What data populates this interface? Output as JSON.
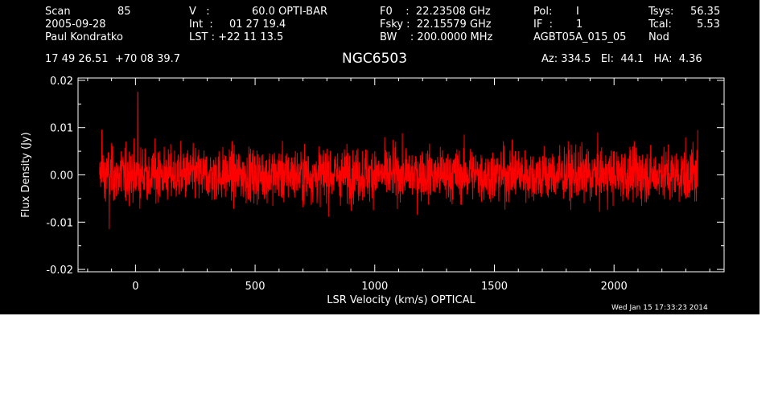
{
  "header": {
    "scan_label": "Scan",
    "scan_value": "85",
    "date": "2005-09-28",
    "observer": "Paul Kondratko",
    "v_label": "V   :",
    "v_value": "60.0 OPTI-BAR",
    "int_label": "Int  :",
    "int_value": "01 27 19.4",
    "lst_label": "LST : +22 11 13.5",
    "f0": "F0    :  22.23508 GHz",
    "fsky": "Fsky :  22.15579 GHz",
    "bw": "BW    : 200.0000 MHz",
    "pol_label": "Pol:",
    "pol_value": "I",
    "if_label": "IF  :",
    "if_value": "1",
    "project": "AGBT05A_015_05",
    "tsys_label": "Tsys:",
    "tsys_value": "56.35",
    "tcal_label": "Tcal:",
    "tcal_value": "5.53",
    "mode": "Nod",
    "coords": "17 49 26.51  +70 08 39.7",
    "source": "NGC6503",
    "azelha": "Az: 334.5   El:  44.1   HA:  4.36",
    "timestamp": "Wed Jan 15 17:33:23 2014"
  },
  "chart_data": {
    "type": "line",
    "xlabel": "LSR Velocity (km/s) OPTICAL",
    "ylabel": "Flux Density (Jy)",
    "xlim": [
      -240,
      2460
    ],
    "ylim": [
      -0.0205,
      0.0205
    ],
    "xticks": [
      0,
      500,
      1000,
      1500,
      2000
    ],
    "yticks": [
      -0.02,
      -0.01,
      0.0,
      0.01,
      0.02
    ],
    "xtick_labels": [
      "0",
      "500",
      "1000",
      "1500",
      "2000"
    ],
    "ytick_labels": [
      "-0.02",
      "-0.01",
      "0.00",
      "0.01",
      "0.02"
    ],
    "series": [
      {
        "color": "#ff0000",
        "x": [
          -150,
          -140,
          -130,
          -120,
          -110,
          -100,
          -80,
          -60,
          -40,
          -20,
          0,
          10,
          20,
          40,
          60,
          100,
          150,
          200,
          300,
          400,
          500,
          600,
          700,
          800,
          900,
          1000,
          1100,
          1200,
          1300,
          1400,
          1500,
          1600,
          1700,
          1800,
          1900,
          2000,
          2100,
          2200,
          2300,
          2330,
          2350
        ],
        "y": [
          0.0,
          0.0095,
          -0.005,
          0.0035,
          -0.0115,
          0.006,
          -0.0045,
          0.005,
          -0.0055,
          0.004,
          -0.003,
          0.0175,
          -0.005,
          0.0055,
          -0.004,
          0.005,
          -0.0045,
          0.0045,
          -0.004,
          0.005,
          -0.004,
          0.0045,
          -0.005,
          0.0055,
          -0.0045,
          0.005,
          -0.004,
          0.0045,
          -0.005,
          0.0055,
          -0.0045,
          0.005,
          -0.004,
          0.0045,
          -0.0055,
          0.005,
          -0.0045,
          0.004,
          -0.005,
          0.007,
          0.0095
        ],
        "noise_rms": 0.0028
      }
    ]
  }
}
